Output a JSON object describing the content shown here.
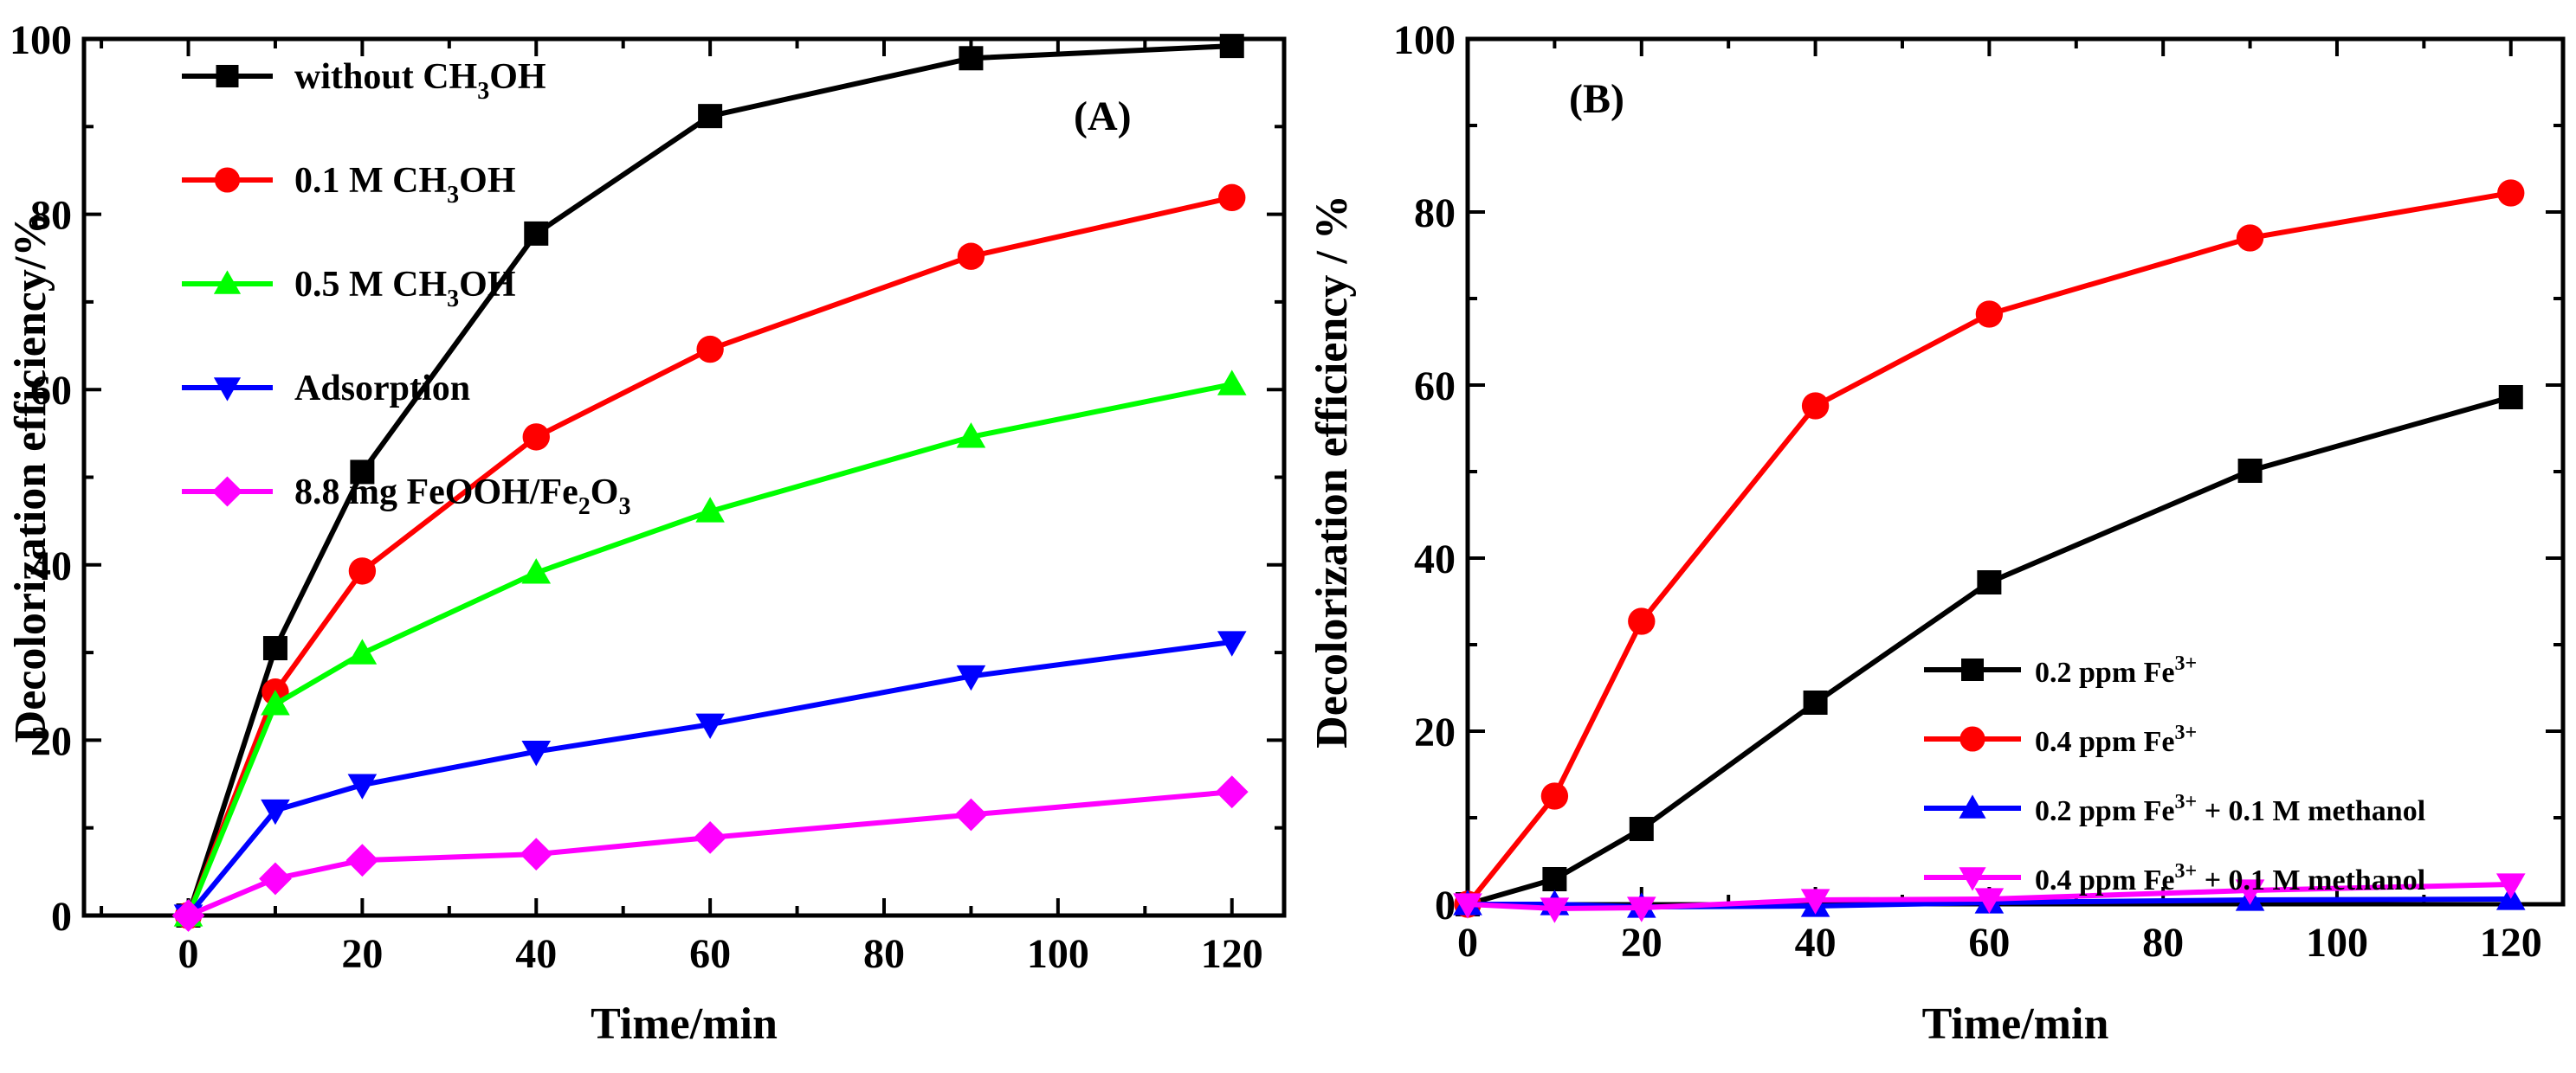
{
  "chart_data": [
    {
      "type": "line",
      "panel_label": "(A)",
      "xlabel": "Time/min",
      "ylabel": "Decolorization efficiency/%",
      "xlim": [
        -12,
        126
      ],
      "ylim": [
        0,
        100
      ],
      "x_ticks": [
        "0",
        "20",
        "40",
        "60",
        "80",
        "100",
        "120"
      ],
      "y_ticks": [
        "0",
        "20",
        "40",
        "60",
        "80",
        "100"
      ],
      "legend_position": "top-left",
      "series": [
        {
          "name": "without CH3OH",
          "label_parts": [
            "without CH",
            "3",
            "OH"
          ],
          "color": "#000000",
          "marker": "square",
          "x": [
            0,
            10,
            20,
            40,
            60,
            90,
            120
          ],
          "values": [
            0,
            30.5,
            50.6,
            77.8,
            91.2,
            97.8,
            99.2
          ]
        },
        {
          "name": "0.1 M CH3OH",
          "label_parts": [
            "0.1 M CH",
            "3",
            "OH"
          ],
          "color": "#ff0000",
          "marker": "circle",
          "x": [
            0,
            10,
            20,
            40,
            60,
            90,
            120
          ],
          "values": [
            0,
            25.5,
            39.3,
            54.6,
            64.6,
            75.2,
            81.9
          ]
        },
        {
          "name": "0.5 M CH3OH",
          "label_parts": [
            "0.5 M CH",
            "3",
            "OH"
          ],
          "color": "#00ff00",
          "marker": "triangle-up",
          "x": [
            0,
            10,
            20,
            40,
            60,
            90,
            120
          ],
          "values": [
            0,
            24.1,
            29.9,
            39.1,
            46.1,
            54.6,
            60.6
          ]
        },
        {
          "name": "Adsorption",
          "label_parts": [
            "Adsorption",
            "",
            ""
          ],
          "color": "#0000ff",
          "marker": "triangle-down",
          "x": [
            0,
            10,
            20,
            40,
            60,
            90,
            120
          ],
          "values": [
            0,
            12.0,
            14.9,
            18.7,
            21.8,
            27.3,
            31.2
          ]
        },
        {
          "name": "8.8 mg FeOOH/Fe2O3",
          "label_parts": [
            "8.8 mg FeOOH/Fe",
            "2",
            "O"
          ],
          "label_tail": "3",
          "color": "#ff00ff",
          "marker": "diamond",
          "x": [
            0,
            10,
            20,
            40,
            60,
            90,
            120
          ],
          "values": [
            0,
            4.2,
            6.3,
            7.0,
            8.9,
            11.5,
            14.1
          ]
        }
      ]
    },
    {
      "type": "line",
      "panel_label": "(B)",
      "xlabel": "Time/min",
      "ylabel": "Decolorization efficiency / %",
      "xlim": [
        0,
        126
      ],
      "ylim": [
        0,
        100
      ],
      "x_ticks": [
        "0",
        "20",
        "40",
        "60",
        "80",
        "100",
        "120"
      ],
      "y_ticks": [
        "0",
        "20",
        "40",
        "60",
        "80",
        "100"
      ],
      "legend_position": "center-right",
      "series": [
        {
          "name": "0.2 ppm Fe3+",
          "label_parts": [
            "0.2 ppm Fe",
            "3+",
            ""
          ],
          "color": "#000000",
          "marker": "square",
          "x": [
            0,
            10,
            20,
            40,
            60,
            90,
            120
          ],
          "values": [
            0,
            2.9,
            8.7,
            23.3,
            37.2,
            50.1,
            58.6
          ]
        },
        {
          "name": "0.4 ppm Fe3+",
          "label_parts": [
            "0.4 ppm Fe",
            "3+",
            ""
          ],
          "color": "#ff0000",
          "marker": "circle",
          "x": [
            0,
            10,
            20,
            40,
            60,
            90,
            120
          ],
          "values": [
            0,
            12.5,
            32.7,
            57.6,
            68.2,
            77.0,
            82.2
          ]
        },
        {
          "name": "0.2 ppm Fe3+ + 0.1 M methanol",
          "label_parts": [
            "0.2 ppm Fe",
            "3+",
            " + 0.1 M methanol"
          ],
          "color": "#0000ff",
          "marker": "triangle-up",
          "x": [
            0,
            10,
            20,
            40,
            60,
            90,
            120
          ],
          "values": [
            0,
            0,
            -0.3,
            -0.2,
            0.2,
            0.5,
            0.6
          ]
        },
        {
          "name": "0.4 ppm Fe3+ + 0.1 M methanol",
          "label_parts": [
            "0.4 ppm Fe",
            "3+",
            " + 0.1 M methanol"
          ],
          "color": "#ff00ff",
          "marker": "triangle-down",
          "x": [
            0,
            10,
            20,
            40,
            60,
            90,
            120
          ],
          "values": [
            0,
            -0.5,
            -0.4,
            0.5,
            0.6,
            1.6,
            2.3
          ]
        }
      ]
    }
  ]
}
